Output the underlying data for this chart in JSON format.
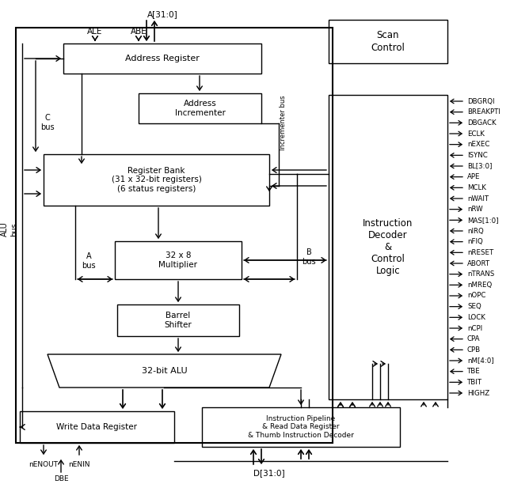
{
  "bg_color": "#ffffff",
  "signals": [
    {
      "name": "DBGRQI",
      "dir": "in"
    },
    {
      "name": "BREAKPTI",
      "dir": "in"
    },
    {
      "name": "DBGACK",
      "dir": "out"
    },
    {
      "name": "ECLK",
      "dir": "out"
    },
    {
      "name": "nEXEC",
      "dir": "out"
    },
    {
      "name": "ISYNC",
      "dir": "in"
    },
    {
      "name": "BL[3:0]",
      "dir": "in"
    },
    {
      "name": "APE",
      "dir": "in"
    },
    {
      "name": "MCLK",
      "dir": "in"
    },
    {
      "name": "nWAIT",
      "dir": "in"
    },
    {
      "name": "nRW",
      "dir": "out"
    },
    {
      "name": "MAS[1:0]",
      "dir": "out"
    },
    {
      "name": "nIRQ",
      "dir": "in"
    },
    {
      "name": "nFIQ",
      "dir": "in"
    },
    {
      "name": "nRESET",
      "dir": "in"
    },
    {
      "name": "ABORT",
      "dir": "in"
    },
    {
      "name": "nTRANS",
      "dir": "out"
    },
    {
      "name": "nMREQ",
      "dir": "out"
    },
    {
      "name": "nOPC",
      "dir": "out"
    },
    {
      "name": "SEQ",
      "dir": "out"
    },
    {
      "name": "LOCK",
      "dir": "out"
    },
    {
      "name": "nCPI",
      "dir": "out"
    },
    {
      "name": "CPA",
      "dir": "in"
    },
    {
      "name": "CPB",
      "dir": "in"
    },
    {
      "name": "nM[4:0]",
      "dir": "out"
    },
    {
      "name": "TBE",
      "dir": "in"
    },
    {
      "name": "TBIT",
      "dir": "out"
    },
    {
      "name": "HIGHZ",
      "dir": "out"
    }
  ]
}
